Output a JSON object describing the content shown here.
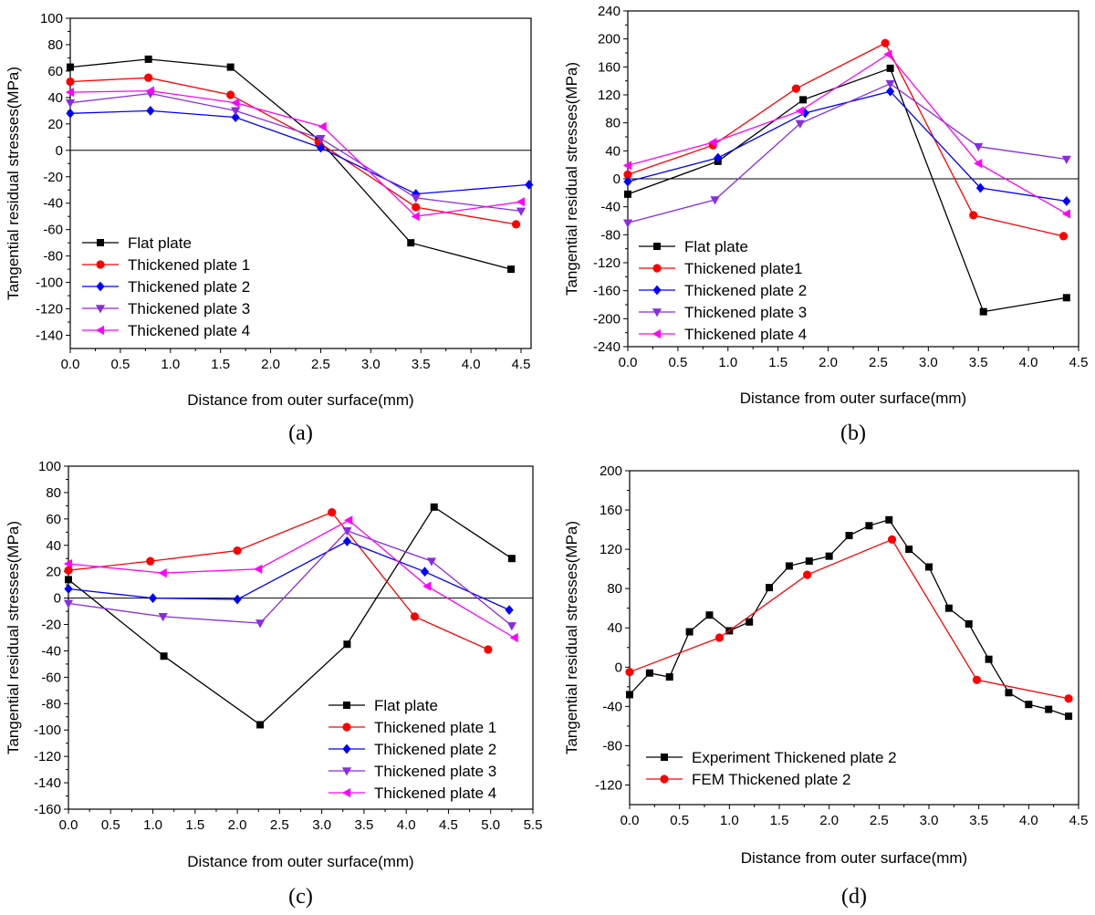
{
  "chart_data": [
    {
      "panel": "a",
      "label": "(a)",
      "type": "line",
      "xlabel": "Distance from outer surface(mm)",
      "ylabel": "Tangential residual stresses(MPa)",
      "xlim": [
        0,
        4.6
      ],
      "ylim": [
        -150,
        100
      ],
      "xticks": [
        0.0,
        0.5,
        1.0,
        1.5,
        2.0,
        2.5,
        3.0,
        3.5,
        4.0,
        4.5
      ],
      "yticks": [
        -140,
        -120,
        -100,
        -80,
        -60,
        -40,
        -20,
        0,
        20,
        40,
        60,
        80,
        100
      ],
      "xtick_decimals": 1,
      "legend_position": "bottom-left",
      "zero_line": true,
      "series": [
        {
          "name": "Flat plate",
          "color": "#000000",
          "marker": "square",
          "x": [
            0.0,
            0.78,
            1.6,
            2.48,
            3.4,
            4.4
          ],
          "y": [
            63,
            69,
            63,
            8,
            -70,
            -90
          ]
        },
        {
          "name": "Thickened plate 1",
          "color": "#ff0000",
          "marker": "circle",
          "x": [
            0.0,
            0.78,
            1.6,
            2.48,
            3.45,
            4.45
          ],
          "y": [
            52,
            55,
            42,
            6,
            -43,
            -56
          ]
        },
        {
          "name": "Thickened plate 2",
          "color": "#0000ff",
          "marker": "diamond",
          "x": [
            0.0,
            0.8,
            1.65,
            2.5,
            3.45,
            4.58
          ],
          "y": [
            28,
            30,
            25,
            2,
            -33,
            -26
          ]
        },
        {
          "name": "Thickened plate 3",
          "color": "#8a2be2",
          "marker": "triangle-down",
          "x": [
            0.0,
            0.8,
            1.65,
            2.5,
            3.45,
            4.5
          ],
          "y": [
            36,
            43,
            30,
            9,
            -36,
            -46
          ]
        },
        {
          "name": "Thickened plate 4",
          "color": "#ff00ff",
          "marker": "triangle-left",
          "x": [
            0.0,
            0.8,
            1.65,
            2.52,
            3.45,
            4.5
          ],
          "y": [
            44,
            45,
            36,
            18,
            -50,
            -39
          ]
        }
      ]
    },
    {
      "panel": "b",
      "label": "(b)",
      "type": "line",
      "xlabel": "Distance from outer surface(mm)",
      "ylabel": "Tangential residual stresses(MPa)",
      "xlim": [
        0,
        4.5
      ],
      "ylim": [
        -240,
        240
      ],
      "xticks": [
        0.0,
        0.5,
        1.0,
        1.5,
        2.0,
        2.5,
        3.0,
        3.5,
        4.0,
        4.5
      ],
      "yticks": [
        -240,
        -200,
        -160,
        -120,
        -80,
        -40,
        0,
        40,
        80,
        120,
        160,
        200,
        240
      ],
      "xtick_decimals": 1,
      "legend_position": "bottom-left",
      "zero_line": true,
      "series": [
        {
          "name": "Flat plate",
          "color": "#000000",
          "marker": "square",
          "x": [
            0.0,
            0.9,
            1.75,
            2.62,
            3.55,
            4.38
          ],
          "y": [
            -22,
            25,
            113,
            158,
            -190,
            -170
          ]
        },
        {
          "name": "Thickened plate1",
          "color": "#ff0000",
          "marker": "circle",
          "x": [
            0.0,
            0.85,
            1.68,
            2.57,
            3.45,
            4.35
          ],
          "y": [
            6,
            48,
            129,
            194,
            -52,
            -82
          ]
        },
        {
          "name": "Thickened plate 2",
          "color": "#0000ff",
          "marker": "diamond",
          "x": [
            0.0,
            0.9,
            1.77,
            2.62,
            3.52,
            4.38
          ],
          "y": [
            -4,
            30,
            94,
            125,
            -13,
            -32
          ]
        },
        {
          "name": "Thickened plate 3",
          "color": "#8a2be2",
          "marker": "triangle-down",
          "x": [
            0.0,
            0.87,
            1.72,
            2.62,
            3.5,
            4.38
          ],
          "y": [
            -63,
            -30,
            79,
            136,
            46,
            28
          ]
        },
        {
          "name": "Thickened plate 4",
          "color": "#ff00ff",
          "marker": "triangle-left",
          "x": [
            0.0,
            0.85,
            1.72,
            2.6,
            3.5,
            4.38
          ],
          "y": [
            19,
            52,
            97,
            178,
            22,
            -50
          ]
        }
      ]
    },
    {
      "panel": "c",
      "label": "(c)",
      "type": "line",
      "xlabel": "Distance from outer surface(mm)",
      "ylabel": "Tangential residual stresses(MPa)",
      "xlim": [
        0,
        5.5
      ],
      "ylim": [
        -160,
        100
      ],
      "xticks": [
        0.0,
        0.5,
        1.0,
        1.5,
        2.0,
        2.5,
        3.0,
        3.5,
        4.0,
        4.5,
        5.0,
        5.5
      ],
      "yticks": [
        -160,
        -140,
        -120,
        -100,
        -80,
        -60,
        -40,
        -20,
        0,
        20,
        40,
        60,
        80,
        100
      ],
      "xtick_decimals": 1,
      "legend_position": "bottom-right",
      "zero_line": true,
      "series": [
        {
          "name": "Flat plate",
          "color": "#000000",
          "marker": "square",
          "x": [
            0.0,
            1.13,
            2.27,
            3.3,
            4.33,
            5.25
          ],
          "y": [
            14,
            -44,
            -96,
            -35,
            69,
            30
          ]
        },
        {
          "name": "Thickened plate 1",
          "color": "#ff0000",
          "marker": "circle",
          "x": [
            0.0,
            0.97,
            2.0,
            3.12,
            4.1,
            4.97
          ],
          "y": [
            21,
            28,
            36,
            65,
            -14,
            -39
          ]
        },
        {
          "name": "Thickened plate 2",
          "color": "#0000ff",
          "marker": "diamond",
          "x": [
            0.0,
            1.0,
            2.0,
            3.3,
            4.22,
            5.22
          ],
          "y": [
            7,
            0,
            -1,
            43,
            20,
            -9
          ]
        },
        {
          "name": "Thickened plate 3",
          "color": "#8a2be2",
          "marker": "triangle-down",
          "x": [
            0.0,
            1.12,
            2.27,
            3.3,
            4.3,
            5.25
          ],
          "y": [
            -4,
            -14,
            -19,
            51,
            28,
            -21
          ]
        },
        {
          "name": "Thickened plate 4",
          "color": "#ff00ff",
          "marker": "triangle-left",
          "x": [
            0.0,
            1.12,
            2.25,
            3.32,
            4.25,
            5.28
          ],
          "y": [
            26,
            19,
            22,
            59,
            9,
            -30
          ]
        }
      ]
    },
    {
      "panel": "d",
      "label": "(d)",
      "type": "line",
      "xlabel": "Distance from outer surface(mm)",
      "ylabel": "Tangential residual stresses(MPa)",
      "xlim": [
        0,
        4.5
      ],
      "ylim": [
        -140,
        200
      ],
      "xticks": [
        0.0,
        0.5,
        1.0,
        1.5,
        2.0,
        2.5,
        3.0,
        3.5,
        4.0,
        4.5
      ],
      "yticks": [
        -120,
        -80,
        -40,
        0,
        40,
        80,
        120,
        160,
        200
      ],
      "xtick_decimals": 1,
      "legend_position": "bottom-left",
      "zero_line": false,
      "series": [
        {
          "name": "Experiment  Thickened plate 2",
          "color": "#000000",
          "marker": "square",
          "x": [
            0.0,
            0.2,
            0.4,
            0.6,
            0.8,
            1.0,
            1.2,
            1.4,
            1.6,
            1.8,
            2.0,
            2.2,
            2.4,
            2.6,
            2.8,
            3.0,
            3.2,
            3.4,
            3.6,
            3.8,
            4.0,
            4.2,
            4.4
          ],
          "y": [
            -28,
            -6,
            -10,
            36,
            53,
            37,
            46,
            81,
            103,
            108,
            113,
            134,
            144,
            150,
            120,
            102,
            60,
            44,
            8,
            -26,
            -38,
            -43,
            -50
          ]
        },
        {
          "name": "FEM  Thickened plate 2",
          "color": "#ff0000",
          "marker": "circle",
          "x": [
            0.0,
            0.9,
            1.78,
            2.63,
            3.48,
            4.4
          ],
          "y": [
            -5,
            30,
            94,
            130,
            -13,
            -32
          ]
        }
      ]
    }
  ]
}
